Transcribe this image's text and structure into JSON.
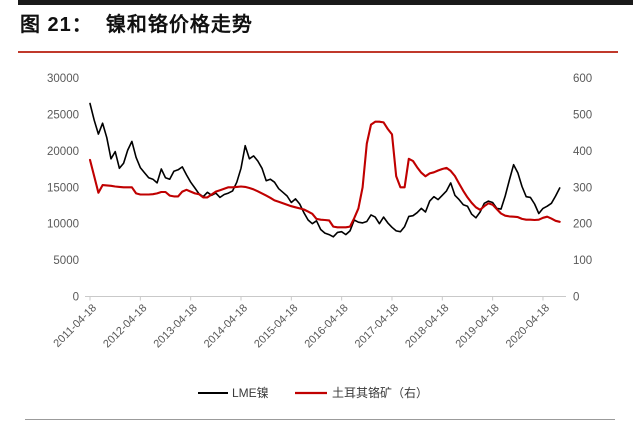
{
  "page": {
    "title": "图 21：  镍和铬价格走势",
    "top_bar_color": "#1a1a1a",
    "title_rule_color": "#c0392b",
    "axis_text_color": "#595959",
    "axis_line_color": "#c9c9c9",
    "footer_divider_color": "#9b9b9b"
  },
  "legend": {
    "items": [
      {
        "label": "LME镍",
        "color": "#000000"
      },
      {
        "label": "土耳其铬矿（右）",
        "color": "#c00000"
      }
    ]
  },
  "chart_data": {
    "type": "line",
    "title": "镍和铬价格走势",
    "grid": false,
    "legend_position": "bottom",
    "x_axis": {
      "tick_labels": [
        "2011-04-18",
        "2012-04-18",
        "2013-04-18",
        "2014-04-18",
        "2015-04-18",
        "2016-04-18",
        "2017-04-18",
        "2018-04-18",
        "2019-04-18",
        "2020-04-18"
      ],
      "start_month": "2011-04",
      "points_per_year": 12,
      "label_rotation_deg": -45
    },
    "left_axis": {
      "min": 0,
      "max": 30000,
      "ticks": [
        30000,
        25000,
        20000,
        15000,
        10000,
        5000,
        0
      ]
    },
    "right_axis": {
      "min": 0,
      "max": 600,
      "ticks": [
        600,
        500,
        400,
        300,
        200,
        100,
        0
      ]
    },
    "series": [
      {
        "name": "LME镍",
        "axis": "left",
        "color": "#000000",
        "stroke_width": 1.6,
        "values": [
          26500,
          24200,
          22300,
          23800,
          21800,
          18900,
          19900,
          17600,
          18300,
          20100,
          21300,
          19100,
          17700,
          17000,
          16300,
          16100,
          15600,
          17500,
          16300,
          16100,
          17200,
          17400,
          17800,
          16700,
          15700,
          14900,
          14100,
          13700,
          14300,
          13900,
          14200,
          13600,
          14000,
          14200,
          14500,
          15700,
          17600,
          20700,
          18900,
          19300,
          18600,
          17600,
          15900,
          16100,
          15700,
          14800,
          14300,
          13800,
          12900,
          13400,
          12700,
          11500,
          10500,
          10000,
          10400,
          9200,
          8700,
          8500,
          8200,
          8800,
          8900,
          8500,
          9000,
          10500,
          10200,
          10100,
          10300,
          11200,
          10900,
          10000,
          10900,
          10100,
          9500,
          9000,
          8900,
          9600,
          11000,
          11100,
          11500,
          12100,
          11600,
          13100,
          13700,
          13300,
          13900,
          14500,
          15600,
          13900,
          13300,
          12600,
          12400,
          11300,
          10800,
          11600,
          12800,
          13100,
          12900,
          12100,
          12000,
          13800,
          16000,
          18100,
          17000,
          15100,
          13700,
          13600,
          12700,
          11400,
          12100,
          12400,
          12800,
          13800,
          14900
        ]
      },
      {
        "name": "土耳其铬矿（右）",
        "axis": "right",
        "color": "#c00000",
        "stroke_width": 2.1,
        "values": [
          375,
          330,
          285,
          306,
          305,
          304,
          302,
          301,
          300,
          300,
          300,
          283,
          280,
          280,
          280,
          281,
          283,
          287,
          287,
          277,
          275,
          275,
          288,
          293,
          288,
          283,
          281,
          272,
          272,
          280,
          288,
          292,
          296,
          300,
          300,
          301,
          302,
          301,
          298,
          294,
          289,
          283,
          277,
          271,
          264,
          260,
          256,
          252,
          248,
          245,
          242,
          239,
          233,
          227,
          213,
          211,
          210,
          209,
          192,
          190,
          190,
          190,
          192,
          215,
          242,
          300,
          420,
          472,
          480,
          480,
          478,
          460,
          445,
          330,
          300,
          300,
          378,
          372,
          355,
          340,
          330,
          338,
          341,
          346,
          350,
          353,
          345,
          331,
          310,
          290,
          272,
          257,
          245,
          238,
          248,
          256,
          252,
          240,
          228,
          222,
          220,
          219,
          218,
          213,
          211,
          211,
          210,
          211,
          216,
          219,
          214,
          208,
          205
        ]
      }
    ]
  }
}
